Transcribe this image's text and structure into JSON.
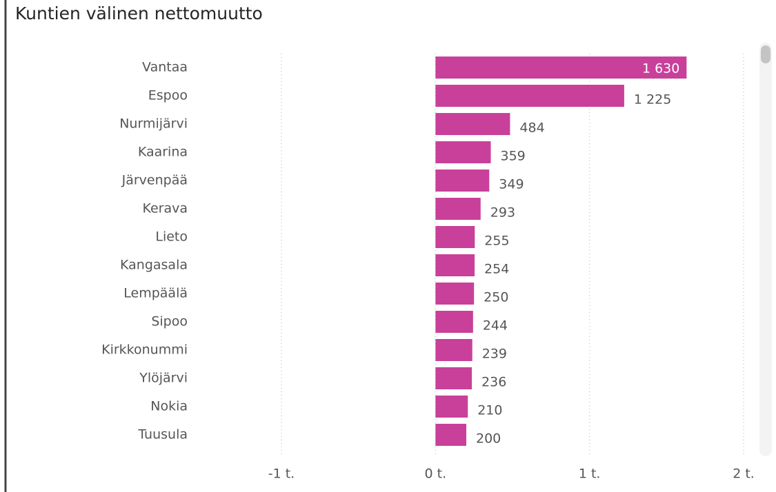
{
  "chart_data": {
    "type": "bar",
    "orientation": "horizontal",
    "title": "Kuntien välinen nettomuutto",
    "categories": [
      "Vantaa",
      "Espoo",
      "Nurmijärvi",
      "Kaarina",
      "Järvenpää",
      "Kerava",
      "Lieto",
      "Kangasala",
      "Lempäälä",
      "Sipoo",
      "Kirkkonummi",
      "Ylöjärvi",
      "Nokia",
      "Tuusula"
    ],
    "values": [
      1630,
      1225,
      484,
      359,
      349,
      293,
      255,
      254,
      250,
      244,
      239,
      236,
      210,
      200
    ],
    "value_labels": [
      "1 630",
      "1 225",
      "484",
      "359",
      "349",
      "293",
      "255",
      "254",
      "250",
      "244",
      "239",
      "236",
      "210",
      "200"
    ],
    "color": "#c8409a",
    "xlim": [
      -1000,
      2000
    ],
    "xticks": [
      {
        "value": -1000,
        "label": "-1 t."
      },
      {
        "value": 0,
        "label": "0 t."
      },
      {
        "value": 1000,
        "label": "1 t."
      },
      {
        "value": 2000,
        "label": "2 t."
      }
    ],
    "grid": true
  }
}
